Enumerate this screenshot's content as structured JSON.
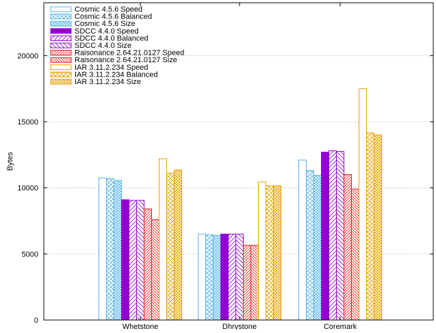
{
  "chart_data": {
    "type": "bar",
    "title": "",
    "xlabel": "",
    "ylabel": "Bytes",
    "ylim": [
      0,
      24000
    ],
    "yticks": [
      0,
      5000,
      10000,
      15000,
      20000
    ],
    "ytick_labels": [
      "0",
      "5000",
      "10000",
      "15000",
      "20000"
    ],
    "grid": "horizontal dotted",
    "legend_position": "top-left",
    "categories": [
      "Whetstone",
      "Dhrystone",
      "Coremark"
    ],
    "series": [
      {
        "name": "Cosmic 4.5.6 Speed",
        "color": "#56b4e9",
        "fill": "outline",
        "values": [
          10750,
          6500,
          12100
        ]
      },
      {
        "name": "Cosmic 4.5.6 Balanced",
        "color": "#56b4e9",
        "fill": "crosshatch",
        "values": [
          10700,
          6450,
          11300
        ]
      },
      {
        "name": "Cosmic 4.5.6 Size",
        "color": "#56b4e9",
        "fill": "densecross",
        "values": [
          10550,
          6400,
          10950
        ]
      },
      {
        "name": "SDCC 4.4.0 Speed",
        "color": "#9400d3",
        "fill": "solid",
        "values": [
          9100,
          6500,
          12700
        ]
      },
      {
        "name": "SDCC 4.4.0 Balanced",
        "color": "#9400d3",
        "fill": "diag-right",
        "values": [
          9050,
          6500,
          12800
        ]
      },
      {
        "name": "SDCC 4.4.0 Size",
        "color": "#9400d3",
        "fill": "diag-left",
        "values": [
          9050,
          6500,
          12750
        ]
      },
      {
        "name": "Raisonance 2.64.21.0127 Speed",
        "color": "#e41a1c",
        "fill": "diag-right-dense",
        "values": [
          8400,
          5650,
          11000
        ]
      },
      {
        "name": "Raisonance 2.64.21.0127 Size",
        "color": "#e41a1c",
        "fill": "diag-left-dense",
        "values": [
          7600,
          5650,
          9900
        ]
      },
      {
        "name": "IAR 3.11.2.234 Speed",
        "color": "#e69f00",
        "fill": "outline",
        "values": [
          12200,
          10450,
          17500
        ]
      },
      {
        "name": "IAR 3.11.2.234 Balanced",
        "color": "#e69f00",
        "fill": "crosshatch",
        "values": [
          11100,
          10150,
          14150
        ]
      },
      {
        "name": "IAR 3.11.2.234 Size",
        "color": "#e69f00",
        "fill": "densecross",
        "values": [
          11350,
          10150,
          14000
        ]
      }
    ]
  }
}
